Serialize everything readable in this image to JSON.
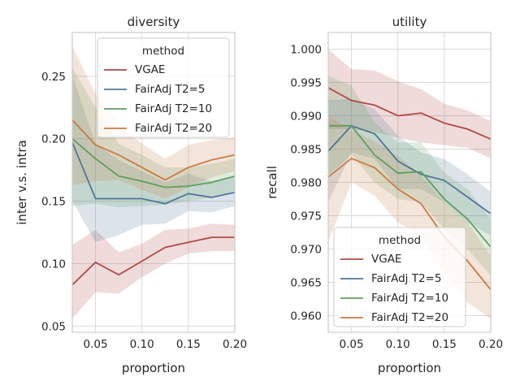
{
  "colors": {
    "VGAE": "#b04a48",
    "FairAdj T2=5": "#507796",
    "FairAdj T2=10": "#5f9e5e",
    "FairAdj T2=20": "#c87c45"
  },
  "chart_data": [
    {
      "type": "line",
      "title": "diversity",
      "xlabel": "proportion",
      "ylabel": "inter v.s. intra",
      "xlim": [
        0.025,
        0.2
      ],
      "ylim": [
        0.045,
        0.285
      ],
      "xticks": [
        0.05,
        0.1,
        0.15,
        0.2
      ],
      "xtick_labels": [
        "0.05",
        "0.10",
        "0.15",
        "0.20"
      ],
      "yticks": [
        0.05,
        0.1,
        0.15,
        0.2,
        0.25
      ],
      "ytick_labels": [
        "0.05",
        "0.10",
        "0.15",
        "0.20",
        "0.25"
      ],
      "grid": true,
      "legend": {
        "title": "method",
        "placement": "top-right"
      },
      "x": [
        0.025,
        0.05,
        0.075,
        0.1,
        0.125,
        0.15,
        0.175,
        0.2
      ],
      "series": [
        {
          "name": "VGAE",
          "values": [
            0.083,
            0.101,
            0.091,
            0.102,
            0.113,
            0.117,
            0.121,
            0.121
          ],
          "lower": [
            0.056,
            0.077,
            0.076,
            0.089,
            0.1,
            0.108,
            0.11,
            0.11
          ],
          "upper": [
            0.115,
            0.127,
            0.109,
            0.116,
            0.127,
            0.128,
            0.132,
            0.131
          ]
        },
        {
          "name": "FairAdj T2=5",
          "values": [
            0.197,
            0.152,
            0.152,
            0.152,
            0.148,
            0.156,
            0.153,
            0.157
          ],
          "lower": [
            0.15,
            0.117,
            0.123,
            0.131,
            0.132,
            0.142,
            0.141,
            0.146
          ],
          "upper": [
            0.251,
            0.196,
            0.183,
            0.174,
            0.165,
            0.172,
            0.166,
            0.17
          ]
        },
        {
          "name": "FairAdj T2=10",
          "values": [
            0.2,
            0.184,
            0.17,
            0.166,
            0.161,
            0.162,
            0.165,
            0.17
          ],
          "lower": [
            0.146,
            0.148,
            0.145,
            0.146,
            0.147,
            0.15,
            0.153,
            0.158
          ],
          "upper": [
            0.257,
            0.225,
            0.196,
            0.187,
            0.177,
            0.177,
            0.18,
            0.184
          ]
        },
        {
          "name": "FairAdj T2=20",
          "values": [
            0.215,
            0.195,
            0.187,
            0.177,
            0.167,
            0.177,
            0.183,
            0.187
          ],
          "lower": [
            0.163,
            0.166,
            0.167,
            0.159,
            0.152,
            0.161,
            0.169,
            0.174
          ],
          "upper": [
            0.274,
            0.236,
            0.211,
            0.196,
            0.184,
            0.195,
            0.199,
            0.201
          ]
        }
      ]
    },
    {
      "type": "line",
      "title": "utility",
      "xlabel": "proportion",
      "ylabel": "recall",
      "xlim": [
        0.025,
        0.2
      ],
      "ylim": [
        0.9575,
        1.0025
      ],
      "xticks": [
        0.05,
        0.1,
        0.15,
        0.2
      ],
      "xtick_labels": [
        "0.05",
        "0.10",
        "0.15",
        "0.20"
      ],
      "yticks": [
        0.96,
        0.965,
        0.97,
        0.975,
        0.98,
        0.985,
        0.99,
        0.995,
        1.0
      ],
      "ytick_labels": [
        "0.960",
        "0.965",
        "0.970",
        "0.975",
        "0.980",
        "0.985",
        "0.990",
        "0.995",
        "1.000"
      ],
      "grid": true,
      "legend": {
        "title": "method",
        "placement": "bottom-left"
      },
      "x": [
        0.025,
        0.05,
        0.075,
        0.1,
        0.125,
        0.15,
        0.175,
        0.2
      ],
      "series": [
        {
          "name": "VGAE",
          "values": [
            0.9942,
            0.9923,
            0.9916,
            0.99,
            0.9904,
            0.9889,
            0.988,
            0.9865
          ],
          "lower": [
            0.988,
            0.988,
            0.9876,
            0.9867,
            0.986,
            0.9856,
            0.9852,
            0.9836
          ],
          "upper": [
            1.0,
            0.997,
            0.9968,
            0.9952,
            0.994,
            0.9918,
            0.9908,
            0.9892
          ]
        },
        {
          "name": "FairAdj T2=5",
          "values": [
            0.9847,
            0.9885,
            0.9873,
            0.9832,
            0.9812,
            0.9803,
            0.9778,
            0.9753
          ],
          "lower": [
            0.977,
            0.9845,
            0.9835,
            0.979,
            0.979,
            0.977,
            0.974,
            0.972
          ],
          "upper": [
            0.9924,
            0.9925,
            0.991,
            0.987,
            0.9845,
            0.9835,
            0.9812,
            0.9786
          ]
        },
        {
          "name": "FairAdj T2=10",
          "values": [
            0.9885,
            0.9885,
            0.9841,
            0.9814,
            0.9816,
            0.9775,
            0.9745,
            0.9703
          ],
          "lower": [
            0.981,
            0.9842,
            0.98,
            0.9775,
            0.977,
            0.973,
            0.97,
            0.966
          ],
          "upper": [
            0.996,
            0.9945,
            0.989,
            0.986,
            0.986,
            0.9815,
            0.979,
            0.9745
          ]
        },
        {
          "name": "FairAdj T2=20",
          "values": [
            0.9808,
            0.9836,
            0.9822,
            0.979,
            0.9768,
            0.9718,
            0.9682,
            0.9639
          ],
          "lower": [
            0.971,
            0.98,
            0.978,
            0.974,
            0.972,
            0.9665,
            0.962,
            0.9595
          ],
          "upper": [
            0.99,
            0.9878,
            0.9862,
            0.984,
            0.981,
            0.977,
            0.974,
            0.969
          ]
        }
      ]
    }
  ]
}
